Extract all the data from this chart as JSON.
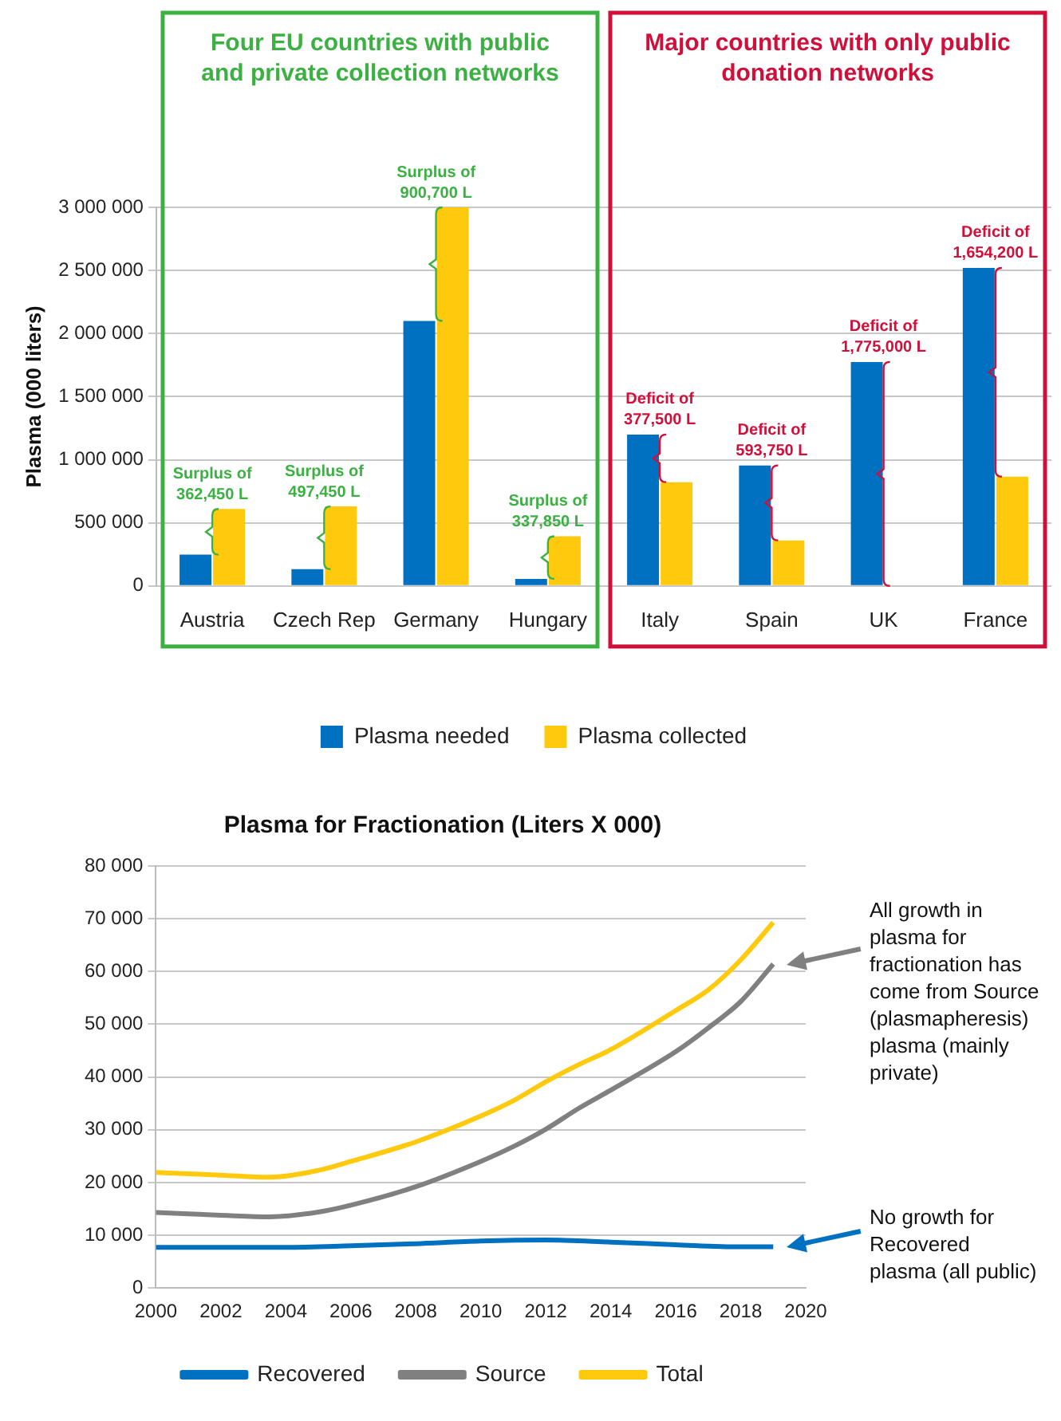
{
  "chart_data": [
    {
      "type": "bar",
      "ylabel": "Plasma (000 liters)",
      "categories": [
        "Austria",
        "Czech Rep",
        "Germany",
        "Hungary",
        "Italy",
        "Spain",
        "UK",
        "France"
      ],
      "series": [
        {
          "name": "Plasma needed",
          "color": "#0070c0",
          "values": [
            247550,
            132550,
            2099300,
            56150,
            1200000,
            955000,
            1775000,
            2520000
          ]
        },
        {
          "name": "Plasma collected",
          "color": "#ffc90e",
          "values": [
            610000,
            630000,
            3000000,
            394000,
            822500,
            361250,
            null,
            865800
          ]
        }
      ],
      "ylim": [
        0,
        3000000
      ],
      "yticks": [
        {
          "value": 0,
          "label": "0"
        },
        {
          "value": 500000,
          "label": "500 000"
        },
        {
          "value": 1000000,
          "label": "1 000 000"
        },
        {
          "value": 1500000,
          "label": "1 500 000"
        },
        {
          "value": 2000000,
          "label": "2 000 000"
        },
        {
          "value": 2500000,
          "label": "2 500 000"
        },
        {
          "value": 3000000,
          "label": "3 000 000"
        }
      ],
      "grid": "y",
      "legend": "bottom",
      "annotations": [
        "Four EU countries with public and private collection networks",
        "Major countries with only public donation networks",
        {
          "text": "Surplus of 362,450 L",
          "x": "Austria",
          "y": 610000
        },
        {
          "text": "Surplus of 497,450 L",
          "x": "Czech Rep",
          "y": 630000
        },
        {
          "text": "Surplus of 900,700 L",
          "x": "Germany",
          "y": 3000000
        },
        {
          "text": "Surplus of 337,850 L",
          "x": "Hungary",
          "y": 394000
        },
        {
          "text": "Deficit of 377,500 L",
          "x": "Italy",
          "y": 1200000
        },
        {
          "text": "Deficit of 593,750 L",
          "x": "Spain",
          "y": 955000
        },
        {
          "text": "Deficit of 1,775,000 L",
          "x": "UK",
          "y": 1775000
        },
        {
          "text": "Deficit of 1,654,200 L",
          "x": "France",
          "y": 2520000
        }
      ]
    },
    {
      "type": "line",
      "title": "Plasma for Fractionation (Liters X 000)",
      "series": [
        {
          "name": "Recovered",
          "color": "#0070c0",
          "x": [
            2000,
            2002,
            2004,
            2006,
            2008,
            2010,
            2012,
            2014,
            2016,
            2018,
            2019
          ],
          "values": [
            7700,
            7700,
            7700,
            8000,
            8400,
            8900,
            9100,
            8700,
            8200,
            7800,
            7800
          ]
        },
        {
          "name": "Source",
          "color": "#808080",
          "x": [
            2000,
            2002,
            2003.5,
            2005,
            2006,
            2008,
            2010,
            2011,
            2012,
            2013,
            2014,
            2016,
            2017,
            2018,
            2019
          ],
          "values": [
            14300,
            13800,
            13500,
            14400,
            15700,
            19200,
            24000,
            26800,
            30100,
            34000,
            37500,
            44800,
            49300,
            54300,
            61400
          ]
        },
        {
          "name": "Total",
          "color": "#ffc90e",
          "x": [
            2000,
            2002,
            2003.5,
            2005,
            2006,
            2008,
            2010,
            2011,
            2012,
            2013,
            2014,
            2016,
            2017,
            2018,
            2019
          ],
          "values": [
            21900,
            21400,
            21000,
            22300,
            24000,
            27700,
            32600,
            35500,
            39100,
            42300,
            45200,
            52600,
            56500,
            62200,
            69300
          ]
        }
      ],
      "xlim": [
        2000,
        2020
      ],
      "xticks": [
        2000,
        2002,
        2004,
        2006,
        2008,
        2010,
        2012,
        2014,
        2016,
        2018,
        2020
      ],
      "ylim": [
        0,
        80000
      ],
      "yticks": [
        {
          "value": 0,
          "label": "0"
        },
        {
          "value": 10000,
          "label": "10 000"
        },
        {
          "value": 20000,
          "label": "20 000"
        },
        {
          "value": 30000,
          "label": "30 000"
        },
        {
          "value": 40000,
          "label": "40 000"
        },
        {
          "value": 50000,
          "label": "50 000"
        },
        {
          "value": 60000,
          "label": "60 000"
        },
        {
          "value": 70000,
          "label": "70 000"
        },
        {
          "value": 80000,
          "label": "80 000"
        }
      ],
      "grid": "y",
      "legend": "bottom",
      "marker": "none",
      "annotations": [
        "All growth in plasma for fractionation has come from Source (plasmapheresis) plasma (mainly private)",
        "No growth for Recovered plasma (all public)"
      ]
    }
  ]
}
